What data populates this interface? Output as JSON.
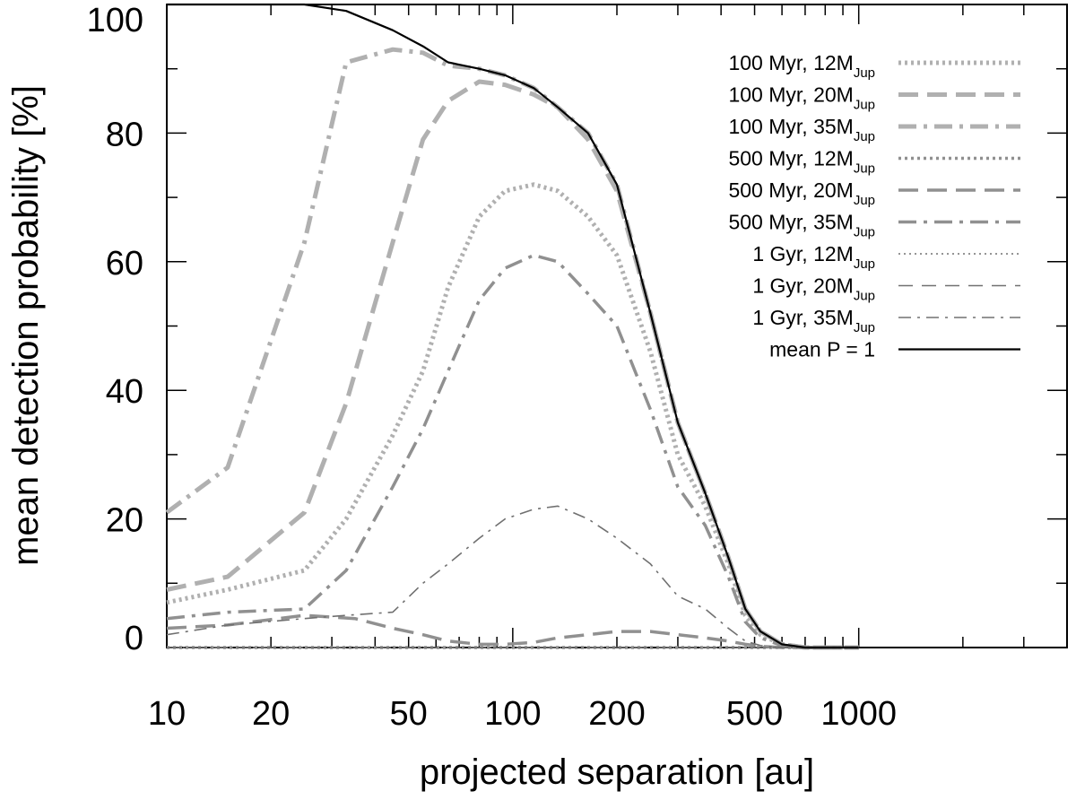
{
  "chart_data": {
    "type": "line",
    "xscale": "log",
    "xlabel": "projected separation [au]",
    "ylabel": "mean detection probability [%]",
    "xlim": [
      10,
      4000
    ],
    "ylim": [
      0,
      100
    ],
    "xticks": [
      {
        "value": 10,
        "label": "10"
      },
      {
        "value": 20,
        "label": "20"
      },
      {
        "value": 50,
        "label": "50"
      },
      {
        "value": 100,
        "label": "100"
      },
      {
        "value": 200,
        "label": "200"
      },
      {
        "value": 500,
        "label": "500"
      },
      {
        "value": 1000,
        "label": "1000"
      }
    ],
    "yticks": [
      {
        "value": 0,
        "label": "0"
      },
      {
        "value": 20,
        "label": "20"
      },
      {
        "value": 40,
        "label": "40"
      },
      {
        "value": 60,
        "label": "60"
      },
      {
        "value": 80,
        "label": "80"
      },
      {
        "value": 100,
        "label": "100"
      }
    ],
    "legend_position": "top-right",
    "series": [
      {
        "name": "100 Myr, 12MJup",
        "label_main": "100 Myr, 12M",
        "label_sub": "Jup",
        "style": "dotted",
        "weight": "thick",
        "color": "#b0b0b0",
        "x": [
          10,
          15,
          25,
          33,
          45,
          55,
          65,
          80,
          95,
          115,
          135,
          165,
          200,
          250,
          300,
          360,
          420,
          470,
          520,
          600,
          700,
          850,
          1000
        ],
        "y": [
          7,
          9,
          12,
          20,
          33,
          43,
          56,
          67,
          71,
          72,
          71,
          67,
          61,
          46,
          30,
          22,
          13,
          5,
          2,
          0.5,
          0,
          0,
          0
        ]
      },
      {
        "name": "100 Myr, 20MJup",
        "label_main": "100 Myr, 20M",
        "label_sub": "Jup",
        "style": "dashed",
        "weight": "thick",
        "color": "#b0b0b0",
        "x": [
          10,
          15,
          25,
          33,
          45,
          55,
          65,
          80,
          95,
          115,
          135,
          165,
          200,
          250,
          300,
          360,
          420,
          470,
          520,
          600,
          700,
          850,
          1000
        ],
        "y": [
          9,
          11,
          21,
          38,
          63,
          79,
          85,
          88,
          87.5,
          86,
          84,
          79,
          71,
          52,
          35,
          24,
          14,
          6,
          2.5,
          0.5,
          0,
          0,
          0
        ]
      },
      {
        "name": "100 Myr, 35MJup",
        "label_main": "100 Myr, 35M",
        "label_sub": "Jup",
        "style": "dashdot",
        "weight": "thick",
        "color": "#b0b0b0",
        "x": [
          10,
          15,
          25,
          33,
          45,
          55,
          65,
          80,
          95,
          115,
          135,
          165,
          200,
          250,
          300,
          360,
          420,
          470,
          520,
          600,
          700,
          850,
          1000
        ],
        "y": [
          21,
          28,
          63,
          91,
          93,
          92.5,
          90.5,
          90,
          89,
          87,
          84,
          80,
          72,
          52,
          35,
          24,
          14,
          6,
          2.5,
          0.5,
          0,
          0,
          0
        ]
      },
      {
        "name": "500 Myr, 12MJup",
        "label_main": "500 Myr, 12M",
        "label_sub": "Jup",
        "style": "dotted",
        "weight": "medium",
        "color": "#909090",
        "x": [
          10,
          15,
          25,
          35,
          45,
          60,
          80,
          100,
          130,
          170,
          220,
          280,
          350,
          450,
          550,
          700,
          1000
        ],
        "y": [
          0,
          0,
          0,
          0,
          0,
          0,
          0,
          0,
          0,
          0,
          0,
          0,
          0,
          0,
          0,
          0,
          0
        ]
      },
      {
        "name": "500 Myr, 20MJup",
        "label_main": "500 Myr, 20M",
        "label_sub": "Jup",
        "style": "dashed",
        "weight": "medium",
        "color": "#909090",
        "x": [
          10,
          15,
          25,
          35,
          45,
          55,
          65,
          80,
          95,
          115,
          135,
          165,
          200,
          250,
          300,
          360,
          420,
          470,
          520,
          600,
          700,
          850,
          1000
        ],
        "y": [
          3,
          3.5,
          5,
          4.5,
          3,
          2,
          1,
          0.5,
          0.5,
          0.8,
          1.5,
          2,
          2.5,
          2.5,
          2,
          1.5,
          1,
          0.5,
          0.2,
          0,
          0,
          0,
          0
        ]
      },
      {
        "name": "500 Myr, 35MJup",
        "label_main": "500 Myr, 35M",
        "label_sub": "Jup",
        "style": "dashdot",
        "weight": "medium",
        "color": "#909090",
        "x": [
          10,
          15,
          25,
          33,
          45,
          55,
          65,
          80,
          95,
          115,
          135,
          165,
          200,
          250,
          300,
          360,
          420,
          470,
          520,
          600,
          700,
          850,
          1000
        ],
        "y": [
          4.5,
          5.5,
          6,
          12,
          25,
          34,
          43,
          54,
          59,
          61,
          60,
          55,
          50,
          37,
          25,
          19,
          11,
          4,
          1.5,
          0.3,
          0,
          0,
          0
        ]
      },
      {
        "name": "1 Gyr, 12MJup",
        "label_main": "1 Gyr, 12M",
        "label_sub": "Jup",
        "style": "dotted",
        "weight": "thin",
        "color": "#707070",
        "x": [
          10,
          15,
          25,
          35,
          45,
          60,
          80,
          100,
          130,
          170,
          220,
          280,
          350,
          450,
          550,
          700,
          1000
        ],
        "y": [
          0,
          0,
          0,
          0,
          0,
          0,
          0,
          0,
          0,
          0,
          0,
          0,
          0,
          0,
          0,
          0,
          0
        ]
      },
      {
        "name": "1 Gyr, 20MJup",
        "label_main": "1 Gyr, 20M",
        "label_sub": "Jup",
        "style": "dashed",
        "weight": "thin",
        "color": "#707070",
        "x": [
          10,
          15,
          25,
          35,
          45,
          60,
          80,
          100,
          130,
          170,
          220,
          280,
          350,
          450,
          550,
          700,
          1000
        ],
        "y": [
          0,
          0,
          0,
          0,
          0,
          0,
          0,
          0,
          0,
          0,
          0,
          0,
          0,
          0,
          0,
          0,
          0
        ]
      },
      {
        "name": "1 Gyr, 35MJup",
        "label_main": "1 Gyr, 35M",
        "label_sub": "Jup",
        "style": "dashdot",
        "weight": "thin",
        "color": "#707070",
        "x": [
          10,
          15,
          25,
          33,
          45,
          55,
          65,
          80,
          95,
          115,
          135,
          165,
          200,
          250,
          300,
          360,
          420,
          470,
          520,
          600,
          700,
          850,
          1000
        ],
        "y": [
          2,
          3.5,
          4.5,
          5,
          5.5,
          10,
          13,
          17,
          20,
          21.5,
          22,
          20,
          17,
          13,
          8,
          6,
          3,
          1,
          0.3,
          0,
          0,
          0,
          0
        ]
      },
      {
        "name": "mean P = 1",
        "label_main": "mean P = 1",
        "label_sub": "",
        "style": "solid",
        "weight": "solid",
        "color": "#000000",
        "x": [
          10,
          15,
          25,
          33,
          45,
          55,
          65,
          80,
          95,
          115,
          135,
          165,
          200,
          250,
          300,
          360,
          420,
          470,
          520,
          600,
          700,
          850,
          1000
        ],
        "y": [
          100,
          100,
          100,
          99,
          96,
          93.5,
          91,
          90,
          89,
          87,
          84,
          80,
          72,
          52,
          35,
          24,
          14,
          6,
          2.5,
          0.5,
          0,
          0,
          0
        ]
      }
    ]
  }
}
